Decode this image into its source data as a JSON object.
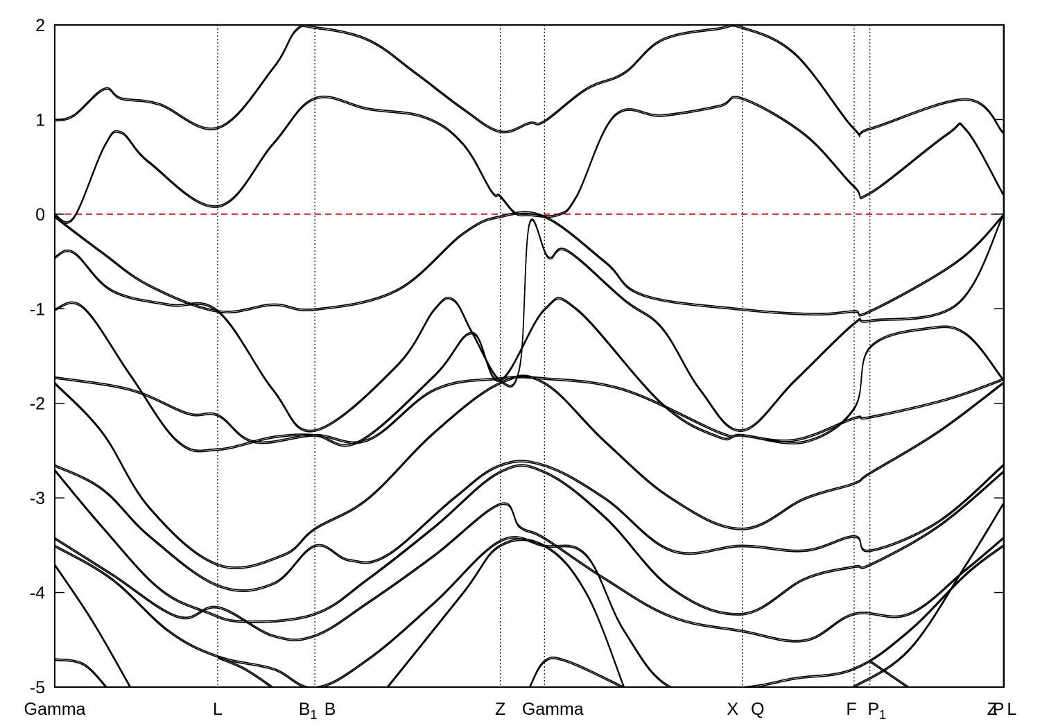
{
  "chart_data": {
    "type": "line",
    "title": "",
    "xlabel": "",
    "ylabel": "",
    "ylim": [
      -5,
      2
    ],
    "xlim": [
      0,
      1.0
    ],
    "yticks": [
      -5,
      -4,
      -3,
      -2,
      -1,
      0,
      1,
      2
    ],
    "grid": false,
    "legend": "none",
    "fermi_level": {
      "value": 0,
      "color": "#e00000",
      "style": "dashed"
    },
    "kpoints": [
      {
        "label": "Gamma",
        "sub": "",
        "x": 0.0
      },
      {
        "label": "L",
        "sub": "",
        "x": 0.1716
      },
      {
        "label": "B",
        "sub": "1",
        "x": 0.274
      },
      {
        "label": "B",
        "sub": "",
        "x": 0.274
      },
      {
        "label": "Z",
        "sub": "",
        "x": 0.4694
      },
      {
        "label": "Gamma",
        "sub": "",
        "x": 0.5159
      },
      {
        "label": "X",
        "sub": "",
        "x": 0.7244
      },
      {
        "label": "Q",
        "sub": "",
        "x": 0.7244
      },
      {
        "label": "F",
        "sub": "",
        "x": 0.8422
      },
      {
        "label": "P",
        "sub": "1",
        "x": 0.8588
      },
      {
        "label": "Z",
        "sub": "",
        "x": 0.9995
      },
      {
        "label": "L",
        "sub": "",
        "x": 0.9995
      },
      {
        "label": "P",
        "sub": "",
        "x": 1.0
      }
    ],
    "segment_break": 0.9995,
    "series": [
      {
        "values": [
          [
            0.0,
            1.0
          ],
          [
            0.02,
            1.05
          ],
          [
            0.052,
            1.33
          ],
          [
            0.07,
            1.23
          ],
          [
            0.11,
            1.17
          ],
          [
            0.172,
            0.92
          ],
          [
            0.23,
            1.55
          ],
          [
            0.254,
            1.95
          ],
          [
            0.274,
            1.98
          ],
          [
            0.33,
            1.85
          ],
          [
            0.38,
            1.5
          ],
          [
            0.43,
            1.12
          ],
          [
            0.469,
            0.88
          ],
          [
            0.5,
            0.97
          ],
          [
            0.516,
            0.99
          ],
          [
            0.56,
            1.33
          ],
          [
            0.6,
            1.5
          ],
          [
            0.64,
            1.85
          ],
          [
            0.7,
            1.97
          ],
          [
            0.724,
            1.98
          ],
          [
            0.78,
            1.7
          ],
          [
            0.842,
            0.91
          ],
          [
            0.859,
            0.91
          ],
          [
            0.96,
            1.22
          ],
          [
            0.999,
            0.87
          ]
        ]
      },
      {
        "values": [
          [
            0.0,
            0.0
          ],
          [
            0.02,
            -0.03
          ],
          [
            0.052,
            0.72
          ],
          [
            0.07,
            0.87
          ],
          [
            0.1,
            0.55
          ],
          [
            0.172,
            0.09
          ],
          [
            0.23,
            0.75
          ],
          [
            0.274,
            1.23
          ],
          [
            0.33,
            1.12
          ],
          [
            0.39,
            1.03
          ],
          [
            0.43,
            0.75
          ],
          [
            0.46,
            0.25
          ],
          [
            0.469,
            0.2
          ],
          [
            0.485,
            0.02
          ],
          [
            0.5,
            0.0
          ],
          [
            0.53,
            0.0
          ],
          [
            0.55,
            0.2
          ],
          [
            0.59,
            1.05
          ],
          [
            0.64,
            1.05
          ],
          [
            0.7,
            1.15
          ],
          [
            0.724,
            1.23
          ],
          [
            0.79,
            0.85
          ],
          [
            0.842,
            0.3
          ],
          [
            0.859,
            0.23
          ],
          [
            0.94,
            0.85
          ],
          [
            0.96,
            0.9
          ],
          [
            0.999,
            0.22
          ]
        ]
      },
      {
        "values": [
          [
            0.0,
            -0.02
          ],
          [
            0.05,
            -0.4
          ],
          [
            0.1,
            -0.75
          ],
          [
            0.172,
            -1.02
          ],
          [
            0.23,
            -0.95
          ],
          [
            0.274,
            -1.0
          ],
          [
            0.36,
            -0.8
          ],
          [
            0.43,
            -0.2
          ],
          [
            0.469,
            -0.02
          ],
          [
            0.516,
            -0.02
          ],
          [
            0.58,
            -0.5
          ],
          [
            0.62,
            -0.85
          ],
          [
            0.724,
            -1.0
          ],
          [
            0.8,
            -1.05
          ],
          [
            0.842,
            -1.02
          ],
          [
            0.859,
            -1.02
          ],
          [
            0.95,
            -0.5
          ],
          [
            0.999,
            -0.01
          ]
        ]
      },
      {
        "values": [
          [
            0.0,
            -0.45
          ],
          [
            0.02,
            -0.4
          ],
          [
            0.06,
            -0.8
          ],
          [
            0.12,
            -0.95
          ],
          [
            0.172,
            -1.02
          ],
          [
            0.23,
            -1.85
          ],
          [
            0.274,
            -2.28
          ],
          [
            0.36,
            -1.6
          ],
          [
            0.4,
            -1.0
          ],
          [
            0.42,
            -0.9
          ],
          [
            0.44,
            -1.25
          ],
          [
            0.469,
            -1.75
          ],
          [
            0.49,
            -1.6
          ],
          [
            0.5,
            -0.1
          ],
          [
            0.52,
            -0.45
          ],
          [
            0.54,
            -0.38
          ],
          [
            0.6,
            -0.9
          ],
          [
            0.64,
            -1.2
          ],
          [
            0.68,
            -1.85
          ],
          [
            0.724,
            -2.28
          ],
          [
            0.78,
            -1.75
          ],
          [
            0.842,
            -1.15
          ],
          [
            0.859,
            -1.12
          ],
          [
            0.95,
            -0.95
          ],
          [
            0.999,
            -0.01
          ]
        ]
      },
      {
        "values": [
          [
            0.0,
            -1.0
          ],
          [
            0.03,
            -0.98
          ],
          [
            0.08,
            -1.7
          ],
          [
            0.13,
            -2.4
          ],
          [
            0.172,
            -2.48
          ],
          [
            0.23,
            -2.35
          ],
          [
            0.274,
            -2.33
          ],
          [
            0.32,
            -2.4
          ],
          [
            0.4,
            -1.7
          ],
          [
            0.44,
            -1.25
          ],
          [
            0.469,
            -1.75
          ],
          [
            0.516,
            -1.0
          ],
          [
            0.55,
            -1.0
          ],
          [
            0.64,
            -2.0
          ],
          [
            0.7,
            -2.35
          ],
          [
            0.724,
            -2.33
          ],
          [
            0.79,
            -2.4
          ],
          [
            0.842,
            -2.05
          ],
          [
            0.859,
            -1.4
          ],
          [
            0.92,
            -1.2
          ],
          [
            0.96,
            -1.26
          ],
          [
            0.999,
            -1.74
          ]
        ]
      },
      {
        "values": [
          [
            0.0,
            -1.72
          ],
          [
            0.08,
            -1.85
          ],
          [
            0.14,
            -2.1
          ],
          [
            0.172,
            -2.12
          ],
          [
            0.21,
            -2.4
          ],
          [
            0.274,
            -2.33
          ],
          [
            0.33,
            -2.38
          ],
          [
            0.4,
            -1.85
          ],
          [
            0.469,
            -1.73
          ],
          [
            0.516,
            -1.73
          ],
          [
            0.6,
            -1.85
          ],
          [
            0.7,
            -2.3
          ],
          [
            0.724,
            -2.33
          ],
          [
            0.78,
            -2.38
          ],
          [
            0.842,
            -2.15
          ],
          [
            0.859,
            -2.14
          ],
          [
            0.94,
            -1.95
          ],
          [
            0.999,
            -1.74
          ]
        ]
      },
      {
        "values": [
          [
            0.0,
            -1.78
          ],
          [
            0.05,
            -2.3
          ],
          [
            0.1,
            -3.1
          ],
          [
            0.172,
            -3.7
          ],
          [
            0.24,
            -3.6
          ],
          [
            0.274,
            -3.32
          ],
          [
            0.33,
            -3.0
          ],
          [
            0.4,
            -2.3
          ],
          [
            0.469,
            -1.78
          ],
          [
            0.516,
            -1.78
          ],
          [
            0.58,
            -2.4
          ],
          [
            0.65,
            -3.0
          ],
          [
            0.724,
            -3.32
          ],
          [
            0.79,
            -3.0
          ],
          [
            0.842,
            -2.84
          ],
          [
            0.859,
            -2.73
          ],
          [
            0.93,
            -2.3
          ],
          [
            0.999,
            -1.78
          ]
        ]
      },
      {
        "values": [
          [
            0.0,
            -2.65
          ],
          [
            0.05,
            -2.9
          ],
          [
            0.1,
            -3.4
          ],
          [
            0.172,
            -3.92
          ],
          [
            0.23,
            -3.9
          ],
          [
            0.274,
            -3.5
          ],
          [
            0.31,
            -3.65
          ],
          [
            0.35,
            -3.6
          ],
          [
            0.42,
            -3.0
          ],
          [
            0.469,
            -2.65
          ],
          [
            0.516,
            -2.65
          ],
          [
            0.58,
            -3.0
          ],
          [
            0.65,
            -3.55
          ],
          [
            0.724,
            -3.5
          ],
          [
            0.79,
            -3.55
          ],
          [
            0.842,
            -3.4
          ],
          [
            0.859,
            -3.55
          ],
          [
            0.93,
            -3.25
          ],
          [
            0.999,
            -2.65
          ]
        ]
      },
      {
        "values": [
          [
            0.0,
            -2.7
          ],
          [
            0.05,
            -3.3
          ],
          [
            0.11,
            -3.95
          ],
          [
            0.16,
            -4.2
          ],
          [
            0.2,
            -4.3
          ],
          [
            0.274,
            -4.22
          ],
          [
            0.33,
            -3.85
          ],
          [
            0.4,
            -3.3
          ],
          [
            0.469,
            -2.72
          ],
          [
            0.516,
            -2.72
          ],
          [
            0.58,
            -3.2
          ],
          [
            0.65,
            -3.95
          ],
          [
            0.724,
            -4.22
          ],
          [
            0.79,
            -3.85
          ],
          [
            0.842,
            -3.72
          ],
          [
            0.859,
            -3.7
          ],
          [
            0.93,
            -3.3
          ],
          [
            0.999,
            -2.72
          ]
        ]
      },
      {
        "values": [
          [
            0.0,
            -3.42
          ],
          [
            0.06,
            -3.8
          ],
          [
            0.13,
            -4.25
          ],
          [
            0.172,
            -4.15
          ],
          [
            0.23,
            -4.45
          ],
          [
            0.274,
            -4.45
          ],
          [
            0.33,
            -4.1
          ],
          [
            0.4,
            -3.6
          ],
          [
            0.469,
            -3.06
          ],
          [
            0.49,
            -3.3
          ],
          [
            0.516,
            -3.42
          ],
          [
            0.58,
            -3.85
          ],
          [
            0.65,
            -4.25
          ],
          [
            0.724,
            -4.4
          ],
          [
            0.79,
            -4.5
          ],
          [
            0.842,
            -4.22
          ],
          [
            0.9,
            -4.22
          ],
          [
            0.96,
            -3.75
          ],
          [
            0.999,
            -3.42
          ]
        ]
      },
      {
        "values": [
          [
            0.0,
            -3.5
          ],
          [
            0.06,
            -3.85
          ],
          [
            0.12,
            -4.4
          ],
          [
            0.172,
            -4.67
          ],
          [
            0.23,
            -4.8
          ],
          [
            0.274,
            -5.0
          ],
          [
            0.33,
            -4.7
          ],
          [
            0.4,
            -4.1
          ],
          [
            0.469,
            -3.45
          ],
          [
            0.516,
            -3.5
          ],
          [
            0.56,
            -3.6
          ],
          [
            0.6,
            -4.4
          ],
          [
            0.65,
            -5.0
          ],
          [
            0.724,
            -5.0
          ],
          [
            0.78,
            -4.9
          ],
          [
            0.842,
            -4.8
          ],
          [
            0.9,
            -4.4
          ],
          [
            0.96,
            -3.8
          ],
          [
            0.999,
            -3.5
          ]
        ]
      },
      {
        "values": [
          [
            0.0,
            -3.7
          ],
          [
            0.04,
            -4.3
          ],
          [
            0.08,
            -5.0
          ]
        ]
      },
      {
        "values": [
          [
            0.0,
            -4.7
          ],
          [
            0.03,
            -4.75
          ],
          [
            0.055,
            -5.0
          ]
        ]
      },
      {
        "values": [
          [
            0.172,
            -4.68
          ],
          [
            0.2,
            -4.8
          ],
          [
            0.23,
            -5.0
          ]
        ]
      },
      {
        "values": [
          [
            0.35,
            -5.0
          ],
          [
            0.43,
            -4.0
          ],
          [
            0.469,
            -3.5
          ],
          [
            0.516,
            -3.5
          ],
          [
            0.56,
            -4.0
          ],
          [
            0.6,
            -5.0
          ]
        ]
      },
      {
        "values": [
          [
            0.5,
            -5.0
          ],
          [
            0.516,
            -4.72
          ],
          [
            0.54,
            -4.72
          ],
          [
            0.6,
            -5.0
          ]
        ]
      },
      {
        "values": [
          [
            0.859,
            -4.72
          ],
          [
            0.9,
            -5.0
          ]
        ]
      },
      {
        "values": [
          [
            0.84,
            -5.0
          ],
          [
            0.9,
            -4.6
          ],
          [
            0.96,
            -3.7
          ],
          [
            0.999,
            -3.06
          ]
        ]
      },
      {
        "values": [
          [
            1.0,
            0.92
          ],
          [
            0.9995,
            0.92
          ]
        ]
      }
    ]
  }
}
